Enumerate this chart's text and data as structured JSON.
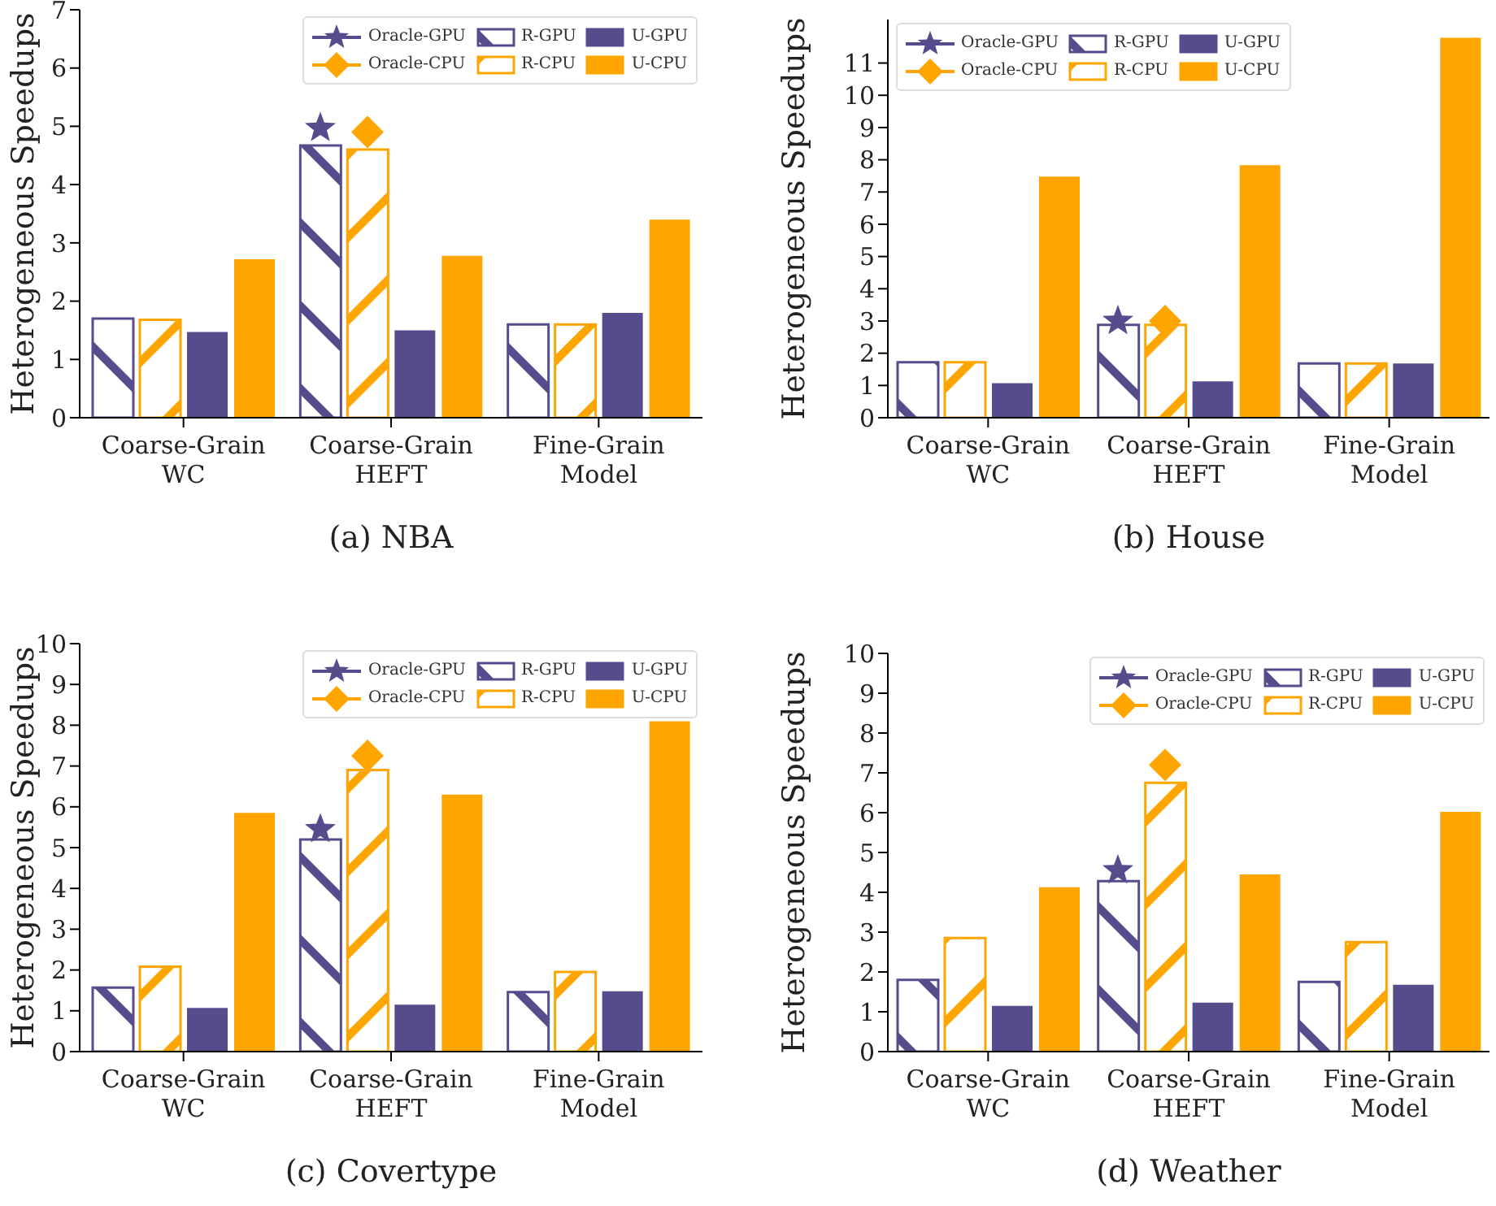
{
  "chart_data": [
    {
      "type": "bar",
      "title": "(a) NBA",
      "ylabel": "Heterogeneous Speedups",
      "categories": [
        "Coarse-Grain WC",
        "Coarse-Grain HEFT",
        "Fine-Grain Model"
      ],
      "ylim": [
        0,
        7
      ],
      "yticks": [
        0,
        1,
        2,
        3,
        4,
        5,
        6,
        7
      ],
      "legend": "top right",
      "series": [
        {
          "name": "Oracle-GPU",
          "type": "scatter",
          "marker": "star",
          "color": "#564c8c",
          "values": [
            null,
            4.97,
            null
          ]
        },
        {
          "name": "Oracle-CPU",
          "type": "scatter",
          "marker": "diamond",
          "color": "#ffa500",
          "values": [
            null,
            4.9,
            null
          ]
        },
        {
          "name": "R-GPU",
          "color": "#564c8c",
          "values": [
            1.7,
            4.67,
            1.6
          ]
        },
        {
          "name": "R-CPU",
          "color": "#ffa500",
          "values": [
            1.68,
            4.6,
            1.6
          ]
        },
        {
          "name": "U-GPU",
          "color": "#564c8c",
          "values": [
            1.47,
            1.5,
            1.8
          ]
        },
        {
          "name": "U-CPU",
          "color": "#ffa500",
          "values": [
            2.72,
            2.78,
            3.4
          ]
        }
      ]
    },
    {
      "type": "bar",
      "title": "(b) House",
      "ylabel": "Heterogeneous Speedups",
      "categories": [
        "Coarse-Grain WC",
        "Coarse-Grain HEFT",
        "Fine-Grain Model"
      ],
      "ylim": [
        0,
        12.35
      ],
      "yticks": [
        0,
        1,
        2,
        3,
        4,
        5,
        6,
        7,
        8,
        9,
        10,
        11
      ],
      "legend": "top left",
      "series": [
        {
          "name": "Oracle-GPU",
          "type": "scatter",
          "marker": "star",
          "color": "#564c8c",
          "values": [
            null,
            3.0,
            null
          ]
        },
        {
          "name": "Oracle-CPU",
          "type": "scatter",
          "marker": "diamond",
          "color": "#ffa500",
          "values": [
            null,
            3.0,
            null
          ]
        },
        {
          "name": "R-GPU",
          "color": "#564c8c",
          "values": [
            1.72,
            2.88,
            1.68
          ]
        },
        {
          "name": "R-CPU",
          "color": "#ffa500",
          "values": [
            1.72,
            2.88,
            1.68
          ]
        },
        {
          "name": "U-GPU",
          "color": "#564c8c",
          "values": [
            1.07,
            1.13,
            1.68
          ]
        },
        {
          "name": "U-CPU",
          "color": "#ffa500",
          "values": [
            7.48,
            7.83,
            11.78
          ]
        }
      ]
    },
    {
      "type": "bar",
      "title": "(c) Covertype",
      "ylabel": "Heterogeneous Speedups",
      "categories": [
        "Coarse-Grain WC",
        "Coarse-Grain HEFT",
        "Fine-Grain Model"
      ],
      "ylim": [
        0,
        10
      ],
      "yticks": [
        0,
        1,
        2,
        3,
        4,
        5,
        6,
        7,
        8,
        9,
        10
      ],
      "legend": "top right",
      "series": [
        {
          "name": "Oracle-GPU",
          "type": "scatter",
          "marker": "star",
          "color": "#564c8c",
          "values": [
            null,
            5.45,
            null
          ]
        },
        {
          "name": "Oracle-CPU",
          "type": "scatter",
          "marker": "diamond",
          "color": "#ffa500",
          "values": [
            null,
            7.25,
            null
          ]
        },
        {
          "name": "R-GPU",
          "color": "#564c8c",
          "values": [
            1.57,
            5.2,
            1.46
          ]
        },
        {
          "name": "R-CPU",
          "color": "#ffa500",
          "values": [
            2.08,
            6.9,
            1.95
          ]
        },
        {
          "name": "U-GPU",
          "color": "#564c8c",
          "values": [
            1.07,
            1.15,
            1.48
          ]
        },
        {
          "name": "U-CPU",
          "color": "#ffa500",
          "values": [
            5.85,
            6.3,
            8.1
          ]
        }
      ]
    },
    {
      "type": "bar",
      "title": "(d) Weather",
      "ylabel": "Heterogeneous Speedups",
      "categories": [
        "Coarse-Grain WC",
        "Coarse-Grain HEFT",
        "Fine-Grain Model"
      ],
      "ylim": [
        0,
        10
      ],
      "yticks": [
        0,
        1,
        2,
        3,
        4,
        5,
        6,
        7,
        8,
        9,
        10
      ],
      "legend": "top right",
      "series": [
        {
          "name": "Oracle-GPU",
          "type": "scatter",
          "marker": "star",
          "color": "#564c8c",
          "values": [
            null,
            4.55,
            null
          ]
        },
        {
          "name": "Oracle-CPU",
          "type": "scatter",
          "marker": "diamond",
          "color": "#ffa500",
          "values": [
            null,
            7.2,
            null
          ]
        },
        {
          "name": "R-GPU",
          "color": "#564c8c",
          "values": [
            1.8,
            4.28,
            1.75
          ]
        },
        {
          "name": "R-CPU",
          "color": "#ffa500",
          "values": [
            2.85,
            6.75,
            2.75
          ]
        },
        {
          "name": "U-GPU",
          "color": "#564c8c",
          "values": [
            1.15,
            1.23,
            1.68
          ]
        },
        {
          "name": "U-CPU",
          "color": "#ffa500",
          "values": [
            4.13,
            4.45,
            6.02
          ]
        }
      ]
    }
  ]
}
